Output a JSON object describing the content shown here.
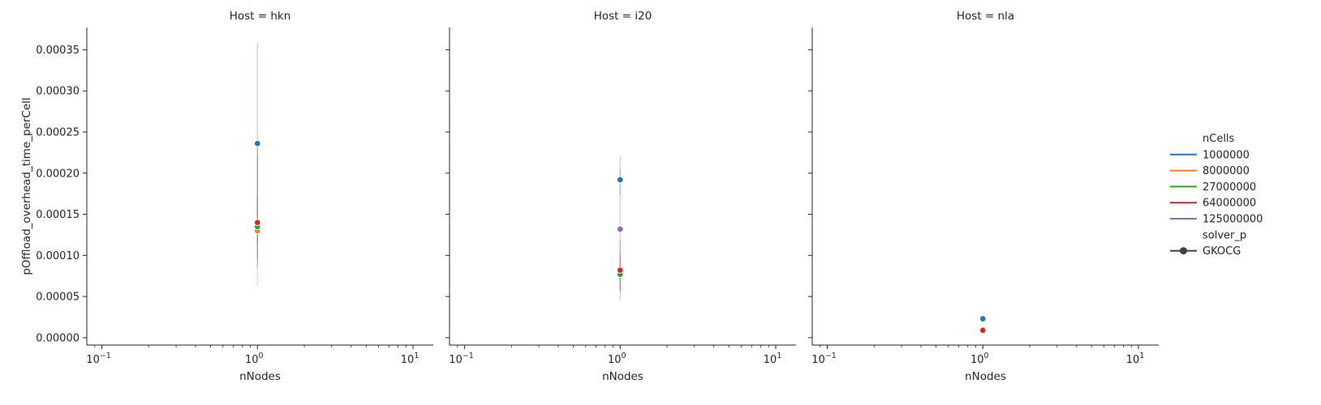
{
  "chart_data": {
    "type": "scatter",
    "facet_label": "Host",
    "facets": [
      {
        "value": "hkn",
        "title": "Host = hkn"
      },
      {
        "value": "i20",
        "title": "Host = i20"
      },
      {
        "value": "nla",
        "title": "Host = nla"
      }
    ],
    "xlabel": "nNodes",
    "ylabel": "pOffload_overhead_time_perCell",
    "xscale": "log",
    "xlim": [
      0.08,
      13.5
    ],
    "ylim": [
      -9e-06,
      0.000377
    ],
    "x_ticks": [
      {
        "value": 0.1,
        "base": "10",
        "exp": "−1"
      },
      {
        "value": 1,
        "base": "10",
        "exp": "0"
      },
      {
        "value": 10,
        "base": "10",
        "exp": "1"
      }
    ],
    "y_ticks": [
      {
        "value": 0.0,
        "label": "0.00000"
      },
      {
        "value": 5e-05,
        "label": "0.00005"
      },
      {
        "value": 0.0001,
        "label": "0.00010"
      },
      {
        "value": 0.00015,
        "label": "0.00015"
      },
      {
        "value": 0.0002,
        "label": "0.00020"
      },
      {
        "value": 0.00025,
        "label": "0.00025"
      },
      {
        "value": 0.0003,
        "label": "0.00030"
      },
      {
        "value": 0.00035,
        "label": "0.00035"
      }
    ],
    "legend": {
      "placement": "right",
      "hue_title": "nCells",
      "hue_items": [
        {
          "label": "1000000",
          "color": "#1f77b4"
        },
        {
          "label": "8000000",
          "color": "#ff7f0e"
        },
        {
          "label": "27000000",
          "color": "#2ca02c"
        },
        {
          "label": "64000000",
          "color": "#d62728"
        },
        {
          "label": "125000000",
          "color": "#9467bd"
        }
      ],
      "style_title": "solver_p",
      "style_items": [
        {
          "label": "GKOCG",
          "color": "#404040"
        }
      ]
    },
    "series": [
      {
        "facet": "hkn",
        "nCells": "1000000",
        "color": "#1f77b4",
        "x": 1,
        "y": 0.000236,
        "ci": [
          0.000113,
          0.000358
        ]
      },
      {
        "facet": "hkn",
        "nCells": "8000000",
        "color": "#ff7f0e",
        "x": 1,
        "y": 0.00013,
        "ci": [
          6.3e-05,
          0.000222
        ]
      },
      {
        "facet": "hkn",
        "nCells": "27000000",
        "color": "#2ca02c",
        "x": 1,
        "y": 0.000135,
        "ci": [
          9.5e-05,
          0.000175
        ]
      },
      {
        "facet": "hkn",
        "nCells": "64000000",
        "color": "#d62728",
        "x": 1,
        "y": 0.00014,
        "ci": [
          8.5e-05,
          0.000232
        ]
      },
      {
        "facet": "i20",
        "nCells": "1000000",
        "color": "#1f77b4",
        "x": 1,
        "y": 0.000192,
        "ci": [
          0.000173,
          0.000205
        ]
      },
      {
        "facet": "i20",
        "nCells": "8000000",
        "color": "#ff7f0e",
        "x": 1,
        "y": 7.9e-05,
        "ci": [
          5.5e-05,
          0.000102
        ]
      },
      {
        "facet": "i20",
        "nCells": "27000000",
        "color": "#2ca02c",
        "x": 1,
        "y": 7.7e-05,
        "ci": [
          5.8e-05,
          9.7e-05
        ]
      },
      {
        "facet": "i20",
        "nCells": "64000000",
        "color": "#d62728",
        "x": 1,
        "y": 8.2e-05,
        "ci": [
          5.7e-05,
          0.000118
        ]
      },
      {
        "facet": "i20",
        "nCells": "125000000",
        "color": "#9467bd",
        "x": 1,
        "y": 0.000132,
        "ci": [
          4.5e-05,
          0.00022
        ]
      },
      {
        "facet": "nla",
        "nCells": "1000000",
        "color": "#1f77b4",
        "x": 1,
        "y": 2.3e-05,
        "ci": [
          2.2e-05,
          2.4e-05
        ]
      },
      {
        "facet": "nla",
        "nCells": "8000000",
        "color": "#ff7f0e",
        "x": 1,
        "y": 1e-05,
        "ci": [
          9e-06,
          1.2e-05
        ]
      },
      {
        "facet": "nla",
        "nCells": "27000000",
        "color": "#2ca02c",
        "x": 1,
        "y": 9.5e-06,
        "ci": [
          8.5e-06,
          1.05e-05
        ]
      },
      {
        "facet": "nla",
        "nCells": "64000000",
        "color": "#d62728",
        "x": 1,
        "y": 9e-06,
        "ci": [
          8e-06,
          1e-05
        ]
      }
    ]
  }
}
